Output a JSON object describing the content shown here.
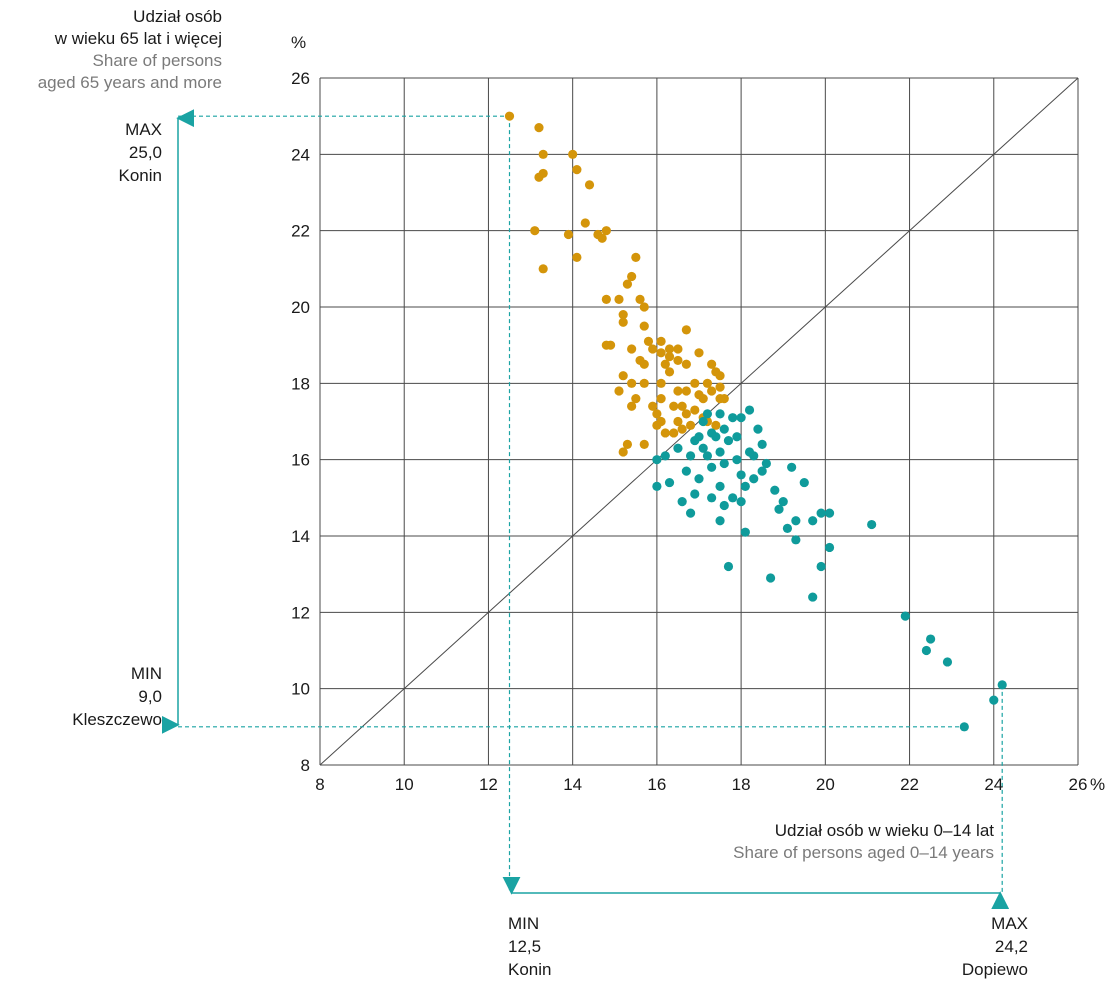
{
  "y_axis": {
    "title_pl_1": "Udział osób",
    "title_pl_2": "w wieku 65 lat i więcej",
    "title_en_1": "Share of persons",
    "title_en_2": "aged 65 years and more",
    "unit": "%"
  },
  "x_axis": {
    "title_pl": "Udział osób w wieku 0–14 lat",
    "title_en": "Share of persons aged 0–14 years",
    "unit": "%"
  },
  "y_max": {
    "label": "MAX",
    "value": "25,0",
    "place": "Konin"
  },
  "y_min": {
    "label": "MIN",
    "value": "9,0",
    "place": "Kleszczewo"
  },
  "x_min": {
    "label": "MIN",
    "value": "12,5",
    "place": "Konin"
  },
  "x_max": {
    "label": "MAX",
    "value": "24,2",
    "place": "Dopiewo"
  },
  "colors": {
    "orange": "#d4950a",
    "teal": "#0f9b9b",
    "grid": "#4a4a4a",
    "accent": "#1aa3a3"
  },
  "chart_data": {
    "type": "scatter",
    "xlim": [
      8,
      26
    ],
    "ylim": [
      8,
      26
    ],
    "x_ticks": [
      8,
      10,
      12,
      14,
      16,
      18,
      20,
      22,
      24,
      26
    ],
    "y_ticks": [
      8,
      10,
      12,
      14,
      16,
      18,
      20,
      22,
      24,
      26
    ],
    "reference_line": "y = x",
    "series": [
      {
        "color": "#d4950a",
        "points": [
          [
            12.5,
            25.0
          ],
          [
            13.2,
            24.7
          ],
          [
            13.3,
            24.0
          ],
          [
            14.0,
            24.0
          ],
          [
            13.2,
            23.4
          ],
          [
            13.3,
            23.5
          ],
          [
            14.1,
            23.6
          ],
          [
            14.4,
            23.2
          ],
          [
            14.3,
            22.2
          ],
          [
            13.1,
            22.0
          ],
          [
            13.9,
            21.9
          ],
          [
            14.8,
            22.0
          ],
          [
            14.6,
            21.9
          ],
          [
            14.7,
            21.8
          ],
          [
            13.3,
            21.0
          ],
          [
            14.1,
            21.3
          ],
          [
            15.5,
            21.3
          ],
          [
            15.4,
            20.8
          ],
          [
            15.3,
            20.6
          ],
          [
            14.8,
            20.2
          ],
          [
            15.1,
            20.2
          ],
          [
            15.6,
            20.2
          ],
          [
            15.7,
            20.0
          ],
          [
            15.2,
            19.8
          ],
          [
            15.2,
            19.6
          ],
          [
            15.7,
            19.5
          ],
          [
            16.7,
            19.4
          ],
          [
            14.8,
            19.0
          ],
          [
            14.9,
            19.0
          ],
          [
            15.8,
            19.1
          ],
          [
            16.1,
            19.1
          ],
          [
            16.3,
            18.9
          ],
          [
            15.4,
            18.9
          ],
          [
            15.9,
            18.9
          ],
          [
            16.1,
            18.8
          ],
          [
            16.5,
            18.9
          ],
          [
            17.0,
            18.8
          ],
          [
            16.3,
            18.7
          ],
          [
            16.5,
            18.6
          ],
          [
            15.6,
            18.6
          ],
          [
            15.7,
            18.5
          ],
          [
            16.2,
            18.5
          ],
          [
            16.7,
            18.5
          ],
          [
            17.3,
            18.5
          ],
          [
            16.3,
            18.3
          ],
          [
            17.4,
            18.3
          ],
          [
            17.5,
            18.2
          ],
          [
            15.2,
            18.2
          ],
          [
            16.1,
            18.0
          ],
          [
            16.9,
            18.0
          ],
          [
            17.2,
            18.0
          ],
          [
            17.5,
            17.9
          ],
          [
            17.3,
            17.8
          ],
          [
            15.4,
            18.0
          ],
          [
            15.7,
            18.0
          ],
          [
            16.7,
            17.8
          ],
          [
            16.5,
            17.8
          ],
          [
            15.1,
            17.8
          ],
          [
            17.0,
            17.7
          ],
          [
            17.1,
            17.6
          ],
          [
            15.5,
            17.6
          ],
          [
            16.1,
            17.6
          ],
          [
            16.4,
            17.4
          ],
          [
            17.5,
            17.6
          ],
          [
            15.4,
            17.4
          ],
          [
            15.9,
            17.4
          ],
          [
            16.6,
            17.4
          ],
          [
            16.0,
            17.2
          ],
          [
            16.9,
            17.3
          ],
          [
            16.7,
            17.2
          ],
          [
            17.1,
            17.1
          ],
          [
            16.5,
            17.0
          ],
          [
            17.2,
            17.0
          ],
          [
            16.0,
            16.9
          ],
          [
            16.8,
            16.9
          ],
          [
            16.6,
            16.8
          ],
          [
            16.2,
            16.7
          ],
          [
            16.4,
            16.7
          ],
          [
            17.4,
            16.9
          ],
          [
            15.3,
            16.4
          ],
          [
            15.7,
            16.4
          ],
          [
            15.2,
            16.2
          ],
          [
            17.6,
            17.6
          ],
          [
            16.1,
            17.0
          ]
        ]
      },
      {
        "color": "#0f9b9b",
        "points": [
          [
            17.2,
            17.2
          ],
          [
            17.5,
            17.2
          ],
          [
            17.1,
            17.0
          ],
          [
            17.8,
            17.1
          ],
          [
            18.0,
            17.1
          ],
          [
            18.2,
            17.3
          ],
          [
            17.6,
            16.8
          ],
          [
            17.3,
            16.7
          ],
          [
            16.9,
            16.5
          ],
          [
            17.0,
            16.6
          ],
          [
            18.4,
            16.8
          ],
          [
            17.4,
            16.6
          ],
          [
            17.7,
            16.5
          ],
          [
            18.5,
            16.4
          ],
          [
            18.3,
            16.1
          ],
          [
            17.1,
            16.3
          ],
          [
            17.5,
            16.2
          ],
          [
            16.5,
            16.3
          ],
          [
            16.2,
            16.1
          ],
          [
            16.0,
            16.0
          ],
          [
            17.9,
            16.0
          ],
          [
            18.2,
            16.2
          ],
          [
            17.6,
            15.9
          ],
          [
            17.3,
            15.8
          ],
          [
            18.6,
            15.9
          ],
          [
            19.2,
            15.8
          ],
          [
            18.0,
            15.6
          ],
          [
            18.3,
            15.5
          ],
          [
            16.7,
            15.7
          ],
          [
            17.0,
            15.5
          ],
          [
            16.3,
            15.4
          ],
          [
            16.0,
            15.3
          ],
          [
            17.5,
            15.3
          ],
          [
            18.8,
            15.2
          ],
          [
            19.5,
            15.4
          ],
          [
            17.8,
            15.0
          ],
          [
            18.0,
            14.9
          ],
          [
            16.9,
            15.1
          ],
          [
            17.3,
            15.0
          ],
          [
            16.6,
            14.9
          ],
          [
            18.9,
            14.7
          ],
          [
            19.0,
            14.9
          ],
          [
            19.3,
            14.4
          ],
          [
            19.7,
            14.4
          ],
          [
            19.9,
            14.6
          ],
          [
            20.1,
            14.6
          ],
          [
            21.1,
            14.3
          ],
          [
            17.6,
            14.8
          ],
          [
            17.5,
            14.4
          ],
          [
            16.8,
            14.6
          ],
          [
            18.1,
            14.1
          ],
          [
            19.1,
            14.2
          ],
          [
            19.3,
            13.9
          ],
          [
            20.1,
            13.7
          ],
          [
            17.7,
            13.2
          ],
          [
            18.7,
            12.9
          ],
          [
            19.9,
            13.2
          ],
          [
            19.7,
            12.4
          ],
          [
            21.9,
            11.9
          ],
          [
            22.4,
            11.0
          ],
          [
            22.5,
            11.3
          ],
          [
            22.9,
            10.7
          ],
          [
            24.2,
            10.1
          ],
          [
            24.0,
            9.7
          ],
          [
            23.3,
            9.0
          ],
          [
            17.9,
            16.6
          ],
          [
            17.2,
            16.1
          ],
          [
            18.5,
            15.7
          ],
          [
            16.8,
            16.1
          ],
          [
            18.1,
            15.3
          ]
        ]
      }
    ],
    "annotations": [
      "y max 25,0 Konin",
      "y min 9,0 Kleszczewo",
      "x min 12,5 Konin",
      "x max 24,2 Dopiewo"
    ]
  }
}
